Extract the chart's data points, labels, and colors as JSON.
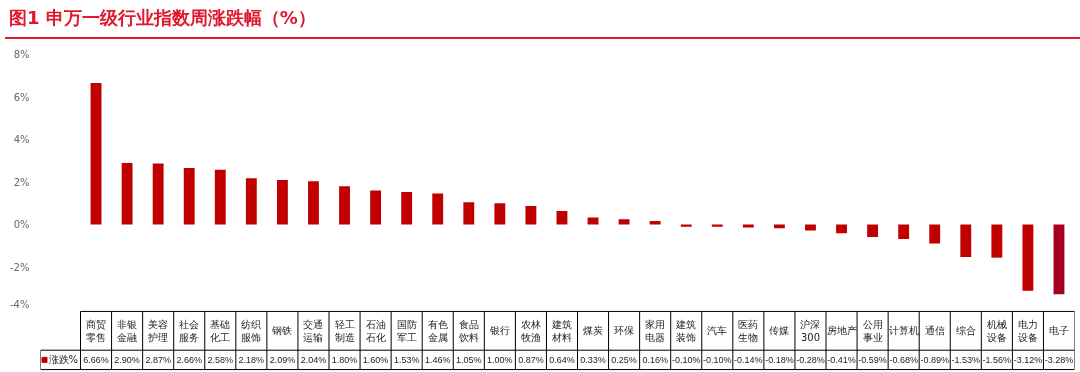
{
  "chart_data": {
    "type": "bar",
    "title": "图1  申万一级行业指数周涨跌幅（%）",
    "categories": [
      "商贸零售",
      "非银金融",
      "美容护理",
      "社会服务",
      "基础化工",
      "纺织服饰",
      "钢铁",
      "交通运输",
      "轻工制造",
      "石油石化",
      "国防军工",
      "有色金属",
      "食品饮料",
      "银行",
      "农林牧渔",
      "建筑材料",
      "煤炭",
      "环保",
      "家用电器",
      "建筑装饰",
      "汽车",
      "医药生物",
      "传媒",
      "沪深300",
      "房地产",
      "公用事业",
      "计算机",
      "通信",
      "综合",
      "机械设备",
      "电力设备",
      "电子"
    ],
    "series": [
      {
        "name": "涨跌%",
        "values": [
          6.66,
          2.9,
          2.87,
          2.66,
          2.58,
          2.18,
          2.09,
          2.04,
          1.8,
          1.6,
          1.53,
          1.46,
          1.05,
          1.0,
          0.87,
          0.64,
          0.33,
          0.25,
          0.16,
          -0.1,
          -0.1,
          -0.14,
          -0.18,
          -0.28,
          -0.41,
          -0.59,
          -0.68,
          -0.89,
          -1.53,
          -1.56,
          -3.12,
          -3.28
        ],
        "value_labels": [
          "6.66%",
          "2.90%",
          "2.87%",
          "2.66%",
          "2.58%",
          "2.18%",
          "2.09%",
          "2.04%",
          "1.80%",
          "1.60%",
          "1.53%",
          "1.46%",
          "1.05%",
          "1.00%",
          "0.87%",
          "0.64%",
          "0.33%",
          "0.25%",
          "0.16%",
          "-0.10%",
          "-0.10%",
          "-0.14%",
          "-0.18%",
          "-0.28%",
          "-0.41%",
          "-0.59%",
          "-0.68%",
          "-0.89%",
          "-1.53%",
          "-1.56%",
          "-3.12%",
          "-3.28%"
        ],
        "colors": [
          "#c00000",
          "#c00000",
          "#c00000",
          "#c00000",
          "#c00000",
          "#c00000",
          "#c00000",
          "#c00000",
          "#c00000",
          "#c00000",
          "#c00000",
          "#c00000",
          "#c00000",
          "#c00000",
          "#c00000",
          "#c00000",
          "#c00000",
          "#c00000",
          "#c00000",
          "#c00000",
          "#c00000",
          "#c00000",
          "#c00000",
          "#c00000",
          "#c00000",
          "#c00000",
          "#c00000",
          "#c00000",
          "#c00000",
          "#c00000",
          "#c00000",
          "#a50021"
        ]
      }
    ],
    "ylim": [
      -4,
      8
    ],
    "yticks": [
      {
        "value": -4,
        "label": "-4%"
      },
      {
        "value": -2,
        "label": "-2%"
      },
      {
        "value": 0,
        "label": "0%"
      },
      {
        "value": 2,
        "label": "2%"
      },
      {
        "value": 4,
        "label": "4%"
      },
      {
        "value": 6,
        "label": "6%"
      },
      {
        "value": 8,
        "label": "8%"
      }
    ],
    "grid": false,
    "legend": "bottom"
  }
}
